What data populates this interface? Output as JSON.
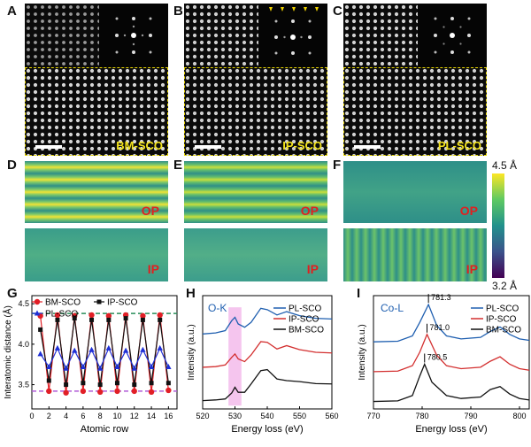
{
  "panel_letters": [
    "A",
    "B",
    "C",
    "D",
    "E",
    "F",
    "G",
    "H",
    "I"
  ],
  "stem": [
    {
      "sample": "BM-SCO"
    },
    {
      "sample": "IP-SCO"
    },
    {
      "sample": "PL-SCO"
    }
  ],
  "maps": {
    "top_label": "OP",
    "bottom_label": "IP"
  },
  "colorbar": {
    "max_label": "4.5 Å",
    "min_label": "3.2 Å",
    "colors": [
      "#fde725",
      "#5ec962",
      "#21918c",
      "#3b528b",
      "#440154"
    ]
  },
  "colors": {
    "bm": "#e11f26",
    "ip": "#111111",
    "pl": "#1f2fd6",
    "h_pl": "#1f5fb0",
    "h_ip": "#d32f2f",
    "h_bm": "#111111",
    "ref_top": "#2a8f5a",
    "ref_bottom": "#b05bd6",
    "highlight": "#f3b6ea"
  },
  "chart_data": [
    {
      "type": "line",
      "panel": "G",
      "xlabel": "Atomic row",
      "ylabel": "Interatomic distance (Å)",
      "xlim": [
        0,
        17
      ],
      "ylim": [
        3.2,
        4.6
      ],
      "xticks": [
        0,
        2,
        4,
        6,
        8,
        10,
        12,
        14,
        16
      ],
      "yticks": [
        3.5,
        4.0,
        4.5
      ],
      "reference_lines": [
        4.38,
        3.42
      ],
      "series": [
        {
          "name": "BM-SCO",
          "x": [
            1,
            2,
            3,
            4,
            5,
            6,
            7,
            8,
            9,
            10,
            11,
            12,
            13,
            14,
            15,
            16
          ],
          "values": [
            4.35,
            3.42,
            4.36,
            3.4,
            4.35,
            3.42,
            4.36,
            3.41,
            4.35,
            3.42,
            4.36,
            3.42,
            4.35,
            3.41,
            4.36,
            3.43
          ]
        },
        {
          "name": "IP-SCO",
          "x": [
            1,
            2,
            3,
            4,
            5,
            6,
            7,
            8,
            9,
            10,
            11,
            12,
            13,
            14,
            15,
            16
          ],
          "values": [
            4.18,
            3.55,
            4.3,
            3.5,
            4.32,
            3.52,
            4.3,
            3.5,
            4.3,
            3.52,
            4.32,
            3.5,
            4.3,
            3.52,
            4.3,
            3.52
          ]
        },
        {
          "name": "PL-SCO",
          "x": [
            1,
            2,
            3,
            4,
            5,
            6,
            7,
            8,
            9,
            10,
            11,
            12,
            13,
            14,
            15,
            16
          ],
          "values": [
            3.88,
            3.72,
            3.95,
            3.7,
            3.92,
            3.72,
            3.93,
            3.7,
            3.95,
            3.72,
            3.92,
            3.7,
            3.93,
            3.72,
            3.95,
            3.72
          ]
        }
      ]
    },
    {
      "type": "line",
      "panel": "H",
      "title": "O-K",
      "xlabel": "Energy loss (eV)",
      "ylabel": "Intensity (a.u.)",
      "xlim": [
        520,
        560
      ],
      "xticks": [
        520,
        530,
        540,
        550,
        560
      ],
      "highlight_range": [
        528,
        532
      ],
      "series": [
        {
          "name": "PL-SCO",
          "x": [
            520,
            524,
            527,
            529,
            530,
            531,
            533,
            535,
            538,
            540,
            543,
            546,
            550,
            555,
            560
          ],
          "values": [
            2.05,
            2.08,
            2.15,
            2.45,
            2.55,
            2.35,
            2.25,
            2.4,
            2.82,
            2.78,
            2.62,
            2.72,
            2.6,
            2.52,
            2.5
          ]
        },
        {
          "name": "IP-SCO",
          "x": [
            520,
            524,
            527,
            529,
            530,
            531,
            533,
            535,
            538,
            540,
            543,
            546,
            550,
            555,
            560
          ],
          "values": [
            1.05,
            1.07,
            1.12,
            1.35,
            1.45,
            1.3,
            1.22,
            1.42,
            1.82,
            1.8,
            1.6,
            1.7,
            1.58,
            1.5,
            1.48
          ]
        },
        {
          "name": "BM-SCO",
          "x": [
            520,
            524,
            527,
            529,
            530,
            531,
            533,
            535,
            538,
            540,
            543,
            546,
            550,
            555,
            560
          ],
          "values": [
            0.05,
            0.07,
            0.1,
            0.28,
            0.45,
            0.3,
            0.3,
            0.55,
            0.95,
            0.98,
            0.7,
            0.65,
            0.62,
            0.56,
            0.55
          ]
        }
      ]
    },
    {
      "type": "line",
      "panel": "I",
      "title": "Co-L",
      "xlabel": "Energy loss (eV)",
      "ylabel": "Intensity (a.u.)",
      "xlim": [
        770,
        802
      ],
      "xticks": [
        770,
        780,
        790,
        800
      ],
      "peak_labels": [
        "781.3",
        "781.0",
        "780.5"
      ],
      "series": [
        {
          "name": "PL-SCO",
          "x": [
            770,
            775,
            778,
            779.5,
            781.3,
            783,
            785,
            788,
            792,
            794,
            796,
            798,
            800,
            802
          ],
          "values": [
            2.05,
            2.07,
            2.25,
            2.7,
            3.3,
            2.6,
            2.25,
            2.15,
            2.2,
            2.4,
            2.55,
            2.3,
            2.15,
            2.1
          ]
        },
        {
          "name": "IP-SCO",
          "x": [
            770,
            775,
            778,
            779.5,
            781.0,
            783,
            785,
            788,
            792,
            794,
            796,
            798,
            800,
            802
          ],
          "values": [
            1.05,
            1.07,
            1.25,
            1.7,
            2.3,
            1.6,
            1.25,
            1.15,
            1.2,
            1.4,
            1.55,
            1.3,
            1.15,
            1.1
          ]
        },
        {
          "name": "BM-SCO",
          "x": [
            770,
            775,
            778,
            779.5,
            780.5,
            782,
            785,
            788,
            792,
            794,
            796,
            798,
            800,
            802
          ],
          "values": [
            0.05,
            0.07,
            0.25,
            0.9,
            1.3,
            0.7,
            0.25,
            0.15,
            0.2,
            0.45,
            0.55,
            0.3,
            0.15,
            0.1
          ]
        }
      ]
    }
  ]
}
